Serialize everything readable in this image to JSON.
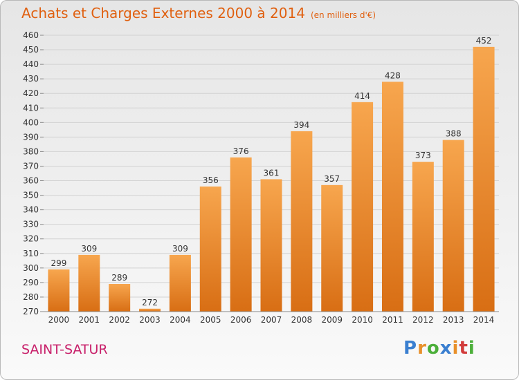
{
  "title": "Achats et Charges Externes 2000 à 2014",
  "unit": "(en milliers d'€)",
  "place": "SAINT-SATUR",
  "logo": {
    "text": "Proxiti",
    "letters": [
      "P",
      "r",
      "o",
      "x",
      "i",
      "t",
      "i"
    ],
    "letter_colors": [
      "#3a7fd0",
      "#e8902a",
      "#4caf3a",
      "#3a7fd0",
      "#e8902a",
      "#d23c3c",
      "#4caf3a"
    ]
  },
  "colors": {
    "bar_top": "#f7a64e",
    "bar_bottom": "#d86e14",
    "title": "#e06010",
    "place": "#c8206a"
  },
  "chart_data": {
    "type": "bar",
    "title": "Achats et Charges Externes 2000 à 2014",
    "subtitle": "(en milliers d'€)",
    "categories": [
      "2000",
      "2001",
      "2002",
      "2003",
      "2004",
      "2005",
      "2006",
      "2007",
      "2008",
      "2009",
      "2010",
      "2011",
      "2012",
      "2013",
      "2014"
    ],
    "values": [
      299,
      309,
      289,
      272,
      309,
      356,
      376,
      361,
      394,
      357,
      414,
      428,
      373,
      388,
      452
    ],
    "ylim": [
      270,
      460
    ],
    "ytick_step": 10,
    "grid": true,
    "data_labels": true
  }
}
